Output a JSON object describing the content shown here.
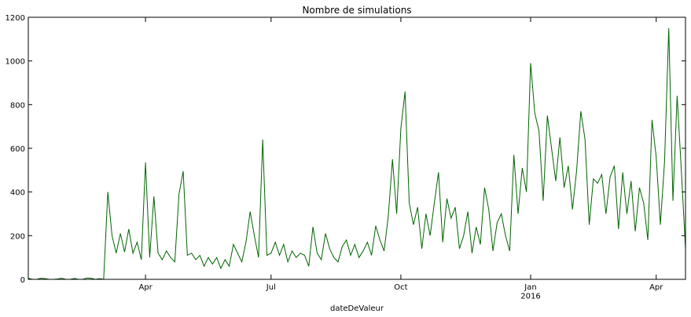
{
  "chart_data": {
    "type": "line",
    "title": "Nombre de simulations",
    "x_label": "dateDeValeur",
    "color": "#006400",
    "categories": [
      null,
      null,
      null,
      null,
      null,
      null,
      null,
      null,
      null,
      null,
      null,
      null,
      null,
      null,
      null,
      null,
      null,
      null,
      null,
      null,
      null,
      null,
      null,
      null,
      null,
      null,
      null,
      null,
      "Apr",
      null,
      null,
      null,
      null,
      null,
      null,
      null,
      null,
      null,
      null,
      null,
      null,
      null,
      null,
      null,
      null,
      null,
      null,
      null,
      null,
      null,
      null,
      null,
      null,
      null,
      null,
      null,
      null,
      null,
      "Jul",
      null,
      null,
      null,
      null,
      null,
      null,
      null,
      null,
      null,
      null,
      null,
      null,
      null,
      null,
      null,
      null,
      null,
      null,
      null,
      null,
      null,
      null,
      null,
      null,
      null,
      null,
      null,
      null,
      null,
      null,
      "Oct",
      null,
      null,
      null,
      null,
      null,
      null,
      null,
      null,
      null,
      null,
      null,
      null,
      null,
      null,
      null,
      null,
      null,
      null,
      null,
      null,
      null,
      null,
      null,
      null,
      null,
      null,
      null,
      null,
      null,
      null,
      "Jan\n2016",
      null,
      null,
      null,
      null,
      null,
      null,
      null,
      null,
      null,
      null,
      null,
      null,
      null,
      null,
      null,
      null,
      null,
      null,
      null,
      null,
      null,
      null,
      null,
      null,
      null,
      null,
      null,
      null,
      null,
      "Apr",
      null,
      null,
      null,
      null,
      null,
      null,
      null
    ],
    "values": [
      5,
      0,
      0,
      5,
      3,
      0,
      0,
      2,
      5,
      0,
      0,
      4,
      0,
      0,
      6,
      5,
      0,
      3,
      0,
      400,
      200,
      120,
      210,
      125,
      230,
      120,
      170,
      90,
      535,
      100,
      380,
      120,
      90,
      130,
      100,
      80,
      390,
      495,
      110,
      120,
      90,
      110,
      60,
      100,
      70,
      100,
      50,
      90,
      60,
      160,
      120,
      80,
      170,
      310,
      200,
      100,
      640,
      110,
      120,
      170,
      110,
      160,
      80,
      130,
      100,
      120,
      110,
      60,
      240,
      120,
      90,
      210,
      140,
      100,
      80,
      150,
      180,
      110,
      160,
      100,
      130,
      170,
      110,
      245,
      180,
      130,
      290,
      550,
      300,
      690,
      860,
      350,
      250,
      330,
      140,
      300,
      200,
      350,
      490,
      170,
      370,
      280,
      330,
      140,
      200,
      310,
      120,
      240,
      160,
      420,
      320,
      130,
      260,
      300,
      200,
      130,
      570,
      300,
      510,
      400,
      990,
      760,
      680,
      360,
      750,
      600,
      450,
      650,
      420,
      520,
      320,
      500,
      770,
      640,
      250,
      460,
      440,
      480,
      300,
      470,
      520,
      230,
      490,
      300,
      450,
      220,
      420,
      350,
      180,
      730,
      560,
      250,
      540,
      1150,
      360,
      840,
      500,
      140
    ],
    "ylim": [
      0,
      1200
    ],
    "yticks": [
      0,
      200,
      400,
      600,
      800,
      1000,
      1200
    ]
  }
}
